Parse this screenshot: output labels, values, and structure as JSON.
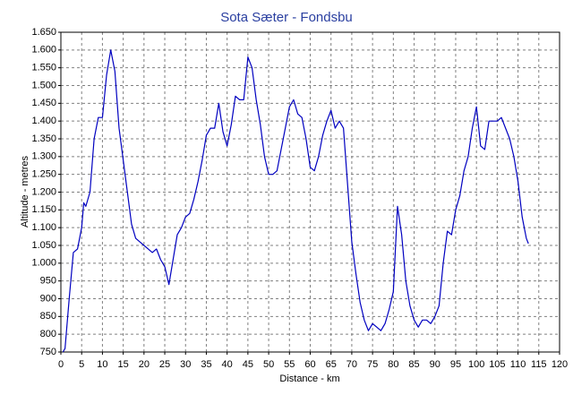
{
  "chart_data": {
    "type": "line",
    "title": "Sota Sæter - Fondsbu",
    "x_label": "Distance - km",
    "y_label": "Altitude - metres",
    "x": [
      0.5,
      1,
      2,
      3,
      4,
      5,
      5.5,
      6,
      7,
      8,
      9,
      10,
      11,
      12,
      13,
      14,
      15,
      16,
      17,
      18,
      19,
      20,
      21,
      22,
      23,
      24,
      25,
      26,
      27,
      28,
      29,
      30,
      31,
      32,
      33,
      34,
      35,
      36,
      37,
      38,
      39,
      40,
      41,
      42,
      43,
      44,
      45,
      46,
      47,
      48,
      49,
      50,
      51,
      52,
      53,
      54,
      55,
      56,
      57,
      58,
      59,
      60,
      61,
      62,
      63,
      64,
      65,
      66,
      67,
      68,
      69,
      70,
      71,
      72,
      73,
      74,
      75,
      76,
      77,
      78,
      79,
      80,
      81,
      82,
      83,
      84,
      85,
      86,
      87,
      88,
      89,
      90,
      91,
      92,
      93,
      94,
      95,
      96,
      97,
      98,
      99,
      100,
      101,
      102,
      103,
      104,
      105,
      106,
      107,
      108,
      109,
      110,
      111,
      112,
      112.5
    ],
    "values": [
      750,
      760,
      900,
      1030,
      1040,
      1100,
      1170,
      1160,
      1200,
      1350,
      1410,
      1410,
      1530,
      1600,
      1540,
      1380,
      1290,
      1200,
      1110,
      1070,
      1060,
      1050,
      1040,
      1030,
      1040,
      1010,
      990,
      940,
      1010,
      1080,
      1100,
      1130,
      1140,
      1180,
      1230,
      1290,
      1360,
      1380,
      1380,
      1450,
      1370,
      1330,
      1390,
      1470,
      1460,
      1460,
      1580,
      1550,
      1460,
      1390,
      1300,
      1250,
      1250,
      1260,
      1320,
      1380,
      1440,
      1460,
      1420,
      1410,
      1350,
      1270,
      1260,
      1300,
      1360,
      1400,
      1430,
      1380,
      1400,
      1380,
      1220,
      1060,
      970,
      890,
      840,
      810,
      830,
      820,
      810,
      830,
      870,
      920,
      1160,
      1080,
      950,
      880,
      840,
      820,
      840,
      840,
      830,
      850,
      880,
      1000,
      1090,
      1080,
      1150,
      1190,
      1260,
      1300,
      1380,
      1440,
      1330,
      1320,
      1400,
      1400,
      1400,
      1410,
      1380,
      1350,
      1300,
      1230,
      1130,
      1070,
      1055
    ],
    "color": "#0000c0",
    "xlim": [
      0,
      120
    ],
    "xticks": [
      0,
      5,
      10,
      15,
      20,
      25,
      30,
      35,
      40,
      45,
      50,
      55,
      60,
      65,
      70,
      75,
      80,
      85,
      90,
      95,
      100,
      105,
      110,
      115,
      120
    ],
    "ylim": [
      750,
      1650
    ],
    "yticks": [
      750,
      800,
      850,
      900,
      950,
      {
        "value": 1000,
        "label": "1.000"
      },
      {
        "value": 1050,
        "label": "1.050"
      },
      {
        "value": 1100,
        "label": "1.100"
      },
      {
        "value": 1150,
        "label": "1.150"
      },
      {
        "value": 1200,
        "label": "1.200"
      },
      {
        "value": 1250,
        "label": "1.250"
      },
      {
        "value": 1300,
        "label": "1.300"
      },
      {
        "value": 1350,
        "label": "1.350"
      },
      {
        "value": 1400,
        "label": "1.400"
      },
      {
        "value": 1450,
        "label": "1.450"
      },
      {
        "value": 1500,
        "label": "1.500"
      },
      {
        "value": 1550,
        "label": "1.550"
      },
      {
        "value": 1600,
        "label": "1.600"
      },
      {
        "value": 1650,
        "label": "1.650"
      }
    ],
    "grid": true
  }
}
